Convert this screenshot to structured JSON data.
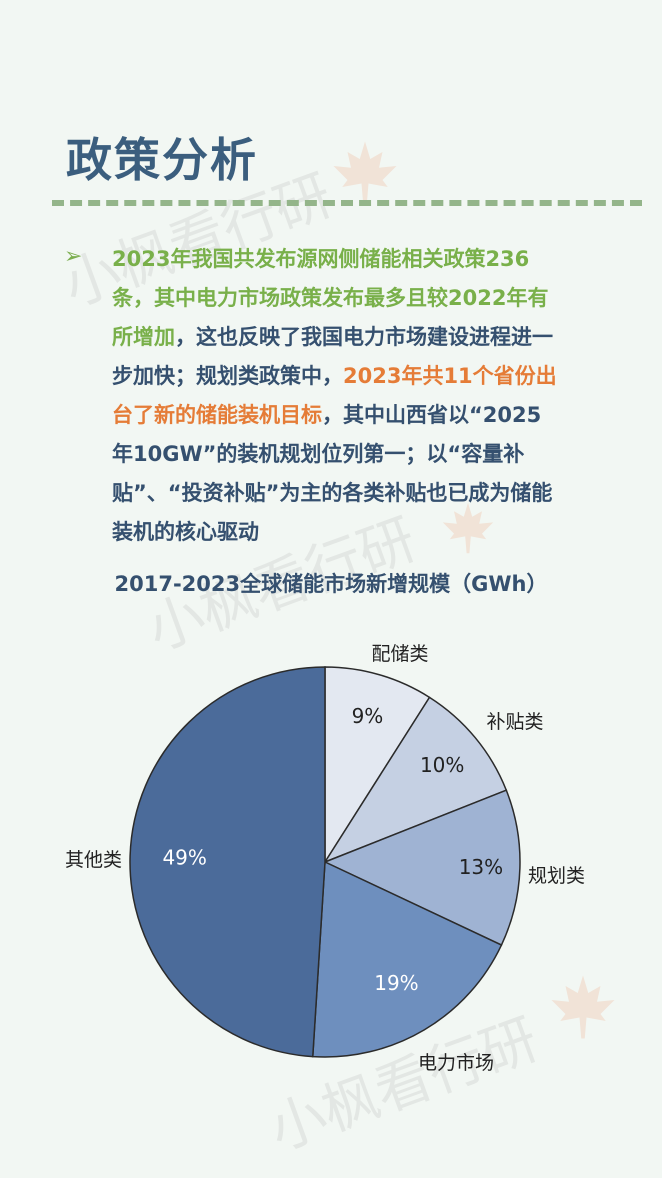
{
  "page": {
    "title": "政策分析",
    "watermark_text": "小枫看行研",
    "paragraph": [
      {
        "text": "2023年我国共发布源网侧储能相关政策236条，其中电力市场政策发布最多且较2022年有所增加",
        "style": "green"
      },
      {
        "text": "，这也反映了我国电力市场建设进程进一步加快；规划类政策中，",
        "style": "normal"
      },
      {
        "text": "2023年共11个省份出台了新的储能装机目标",
        "style": "orange"
      },
      {
        "text": "，其中山西省以“2025年10GW”的装机规划位列第一；以“容量补贴”、“投资补贴”为主的各类补贴也已成为储能装机的核心驱动",
        "style": "normal"
      }
    ]
  },
  "colors": {
    "title": "#3b5e7e",
    "green_text": "#79b04a",
    "orange_text": "#e57c37",
    "body_text": "#35506f",
    "divider": "#94b58a"
  },
  "chart_data": {
    "type": "pie",
    "title": "2017-2023全球储能市场新增规模（GWh）",
    "slices": [
      {
        "label": "配储类",
        "value": 9,
        "value_label": "9%",
        "color": "#e3e8f1"
      },
      {
        "label": "补贴类",
        "value": 10,
        "value_label": "10%",
        "color": "#c5d0e3"
      },
      {
        "label": "规划类",
        "value": 13,
        "value_label": "13%",
        "color": "#9fb3d3"
      },
      {
        "label": "电力市场",
        "value": 19,
        "value_label": "19%",
        "color": "#6e8fbe"
      },
      {
        "label": "其他类",
        "value": 49,
        "value_label": "49%",
        "color": "#4b6b9a"
      }
    ],
    "start_angle": "12 o'clock",
    "direction": "clockwise"
  }
}
